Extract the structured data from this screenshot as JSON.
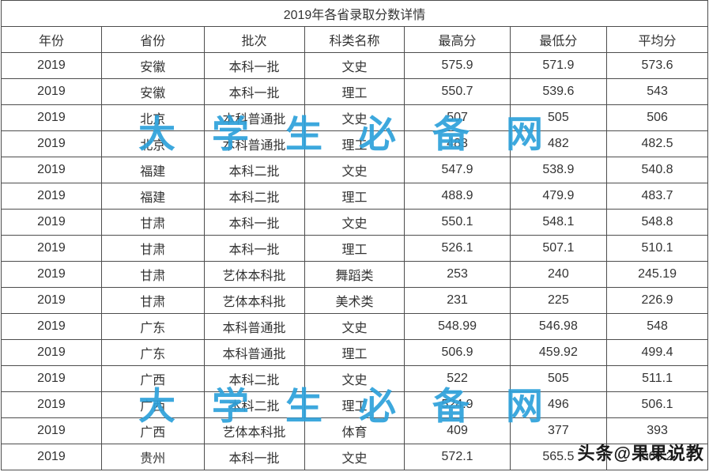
{
  "table": {
    "title": "2019年各省录取分数详情",
    "columns": [
      "年份",
      "省份",
      "批次",
      "科类名称",
      "最高分",
      "最低分",
      "平均分"
    ],
    "rows": [
      [
        "2019",
        "安徽",
        "本科一批",
        "文史",
        "575.9",
        "571.9",
        "573.6"
      ],
      [
        "2019",
        "安徽",
        "本科一批",
        "理工",
        "550.7",
        "539.6",
        "543"
      ],
      [
        "2019",
        "北京",
        "本科普通批",
        "文史",
        "507",
        "505",
        "506"
      ],
      [
        "2019",
        "北京",
        "本科普通批",
        "理工",
        "483",
        "482",
        "482.5"
      ],
      [
        "2019",
        "福建",
        "本科二批",
        "文史",
        "547.9",
        "538.9",
        "540.8"
      ],
      [
        "2019",
        "福建",
        "本科二批",
        "理工",
        "488.9",
        "479.9",
        "483.7"
      ],
      [
        "2019",
        "甘肃",
        "本科一批",
        "文史",
        "550.1",
        "548.1",
        "548.8"
      ],
      [
        "2019",
        "甘肃",
        "本科一批",
        "理工",
        "526.1",
        "507.1",
        "510.1"
      ],
      [
        "2019",
        "甘肃",
        "艺体本科批",
        "舞蹈类",
        "253",
        "240",
        "245.19"
      ],
      [
        "2019",
        "甘肃",
        "艺体本科批",
        "美术类",
        "231",
        "225",
        "226.9"
      ],
      [
        "2019",
        "广东",
        "本科普通批",
        "文史",
        "548.99",
        "546.98",
        "548"
      ],
      [
        "2019",
        "广东",
        "本科普通批",
        "理工",
        "506.9",
        "459.92",
        "499.4"
      ],
      [
        "2019",
        "广西",
        "本科二批",
        "文史",
        "522",
        "505",
        "511.1"
      ],
      [
        "2019",
        "广西",
        "本科二批",
        "理工",
        "524.9",
        "496",
        "506.1"
      ],
      [
        "2019",
        "广西",
        "艺体本科批",
        "体育",
        "409",
        "377",
        "393"
      ],
      [
        "2019",
        "贵州",
        "本科一批",
        "文史",
        "572.1",
        "565.5",
        "568.2"
      ]
    ]
  },
  "watermark": {
    "text": "大学生必备网",
    "color": "#2da1da"
  },
  "credit": {
    "text": "头条@果果说教",
    "color": "#1a1a1a"
  }
}
